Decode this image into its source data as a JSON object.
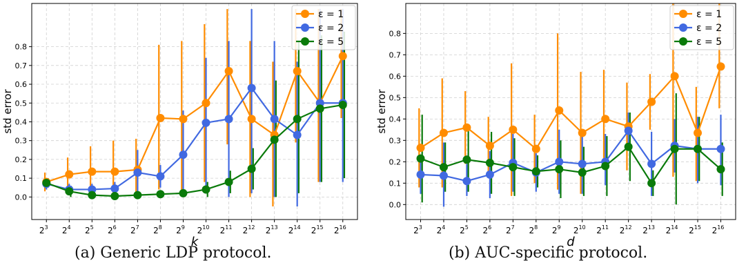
{
  "captions": [
    "(a) Generic LDP protocol.",
    "(b) AUC-specific protocol."
  ],
  "chart_data": [
    {
      "type": "line",
      "xlabel": "k",
      "ylabel": "std error",
      "x": [
        "2^3",
        "2^4",
        "2^5",
        "2^6",
        "2^7",
        "2^8",
        "2^9",
        "2^10",
        "2^11",
        "2^12",
        "2^13",
        "2^14",
        "2^15",
        "2^16"
      ],
      "ylim": [
        -0.12,
        1.03
      ],
      "yticks": [
        "0.0",
        "0.1",
        "0.2",
        "0.3",
        "0.4",
        "0.5",
        "0.6",
        "0.7",
        "0.8"
      ],
      "grid": true,
      "legend_position": "top-right",
      "series": [
        {
          "name": "ε = 1",
          "color": "#ff8c00",
          "values": [
            0.08,
            0.12,
            0.135,
            0.135,
            0.145,
            0.42,
            0.415,
            0.5,
            0.67,
            0.415,
            0.33,
            0.67,
            0.5,
            0.75
          ],
          "err_low": [
            0.03,
            0.02,
            0.02,
            0.02,
            0.02,
            0.04,
            0.02,
            0.08,
            0.28,
            0.0,
            -0.05,
            0.29,
            0.08,
            0.42
          ],
          "err_high": [
            0.13,
            0.21,
            0.27,
            0.3,
            0.31,
            0.81,
            0.83,
            0.92,
            1.0,
            0.83,
            0.72,
            1.0,
            1.0,
            1.0
          ]
        },
        {
          "name": "ε = 2",
          "color": "#4169e1",
          "values": [
            0.07,
            0.04,
            0.04,
            0.045,
            0.13,
            0.11,
            0.225,
            0.395,
            0.415,
            0.58,
            0.415,
            0.33,
            0.5,
            0.5
          ],
          "err_low": [
            0.04,
            0.01,
            0.01,
            0.01,
            0.0,
            0.05,
            0.0,
            0.05,
            0.0,
            0.02,
            0.0,
            -0.05,
            0.08,
            0.08
          ],
          "err_high": [
            0.1,
            0.07,
            0.07,
            0.08,
            0.25,
            0.17,
            0.46,
            0.74,
            0.83,
            1.0,
            0.83,
            0.72,
            1.0,
            1.0
          ]
        },
        {
          "name": "ε = 5",
          "color": "#0a7a0a",
          "values": [
            0.075,
            0.03,
            0.01,
            0.005,
            0.01,
            0.015,
            0.02,
            0.04,
            0.08,
            0.15,
            0.305,
            0.415,
            0.47,
            0.49
          ],
          "err_low": [
            0.05,
            0.0,
            0.0,
            0.0,
            0.0,
            0.0,
            0.0,
            0.0,
            0.02,
            0.04,
            0.0,
            0.02,
            0.08,
            0.1
          ],
          "err_high": [
            0.1,
            0.06,
            0.03,
            0.01,
            0.02,
            0.03,
            0.04,
            0.08,
            0.14,
            0.26,
            0.62,
            0.83,
            0.86,
            0.88
          ]
        }
      ]
    },
    {
      "type": "line",
      "xlabel": "d",
      "ylabel": "std error",
      "x": [
        "2^3",
        "2^4",
        "2^5",
        "2^6",
        "2^7",
        "2^8",
        "2^9",
        "2^10",
        "2^11",
        "2^12",
        "2^13",
        "2^14",
        "2^15",
        "2^16"
      ],
      "ylim": [
        -0.07,
        0.94
      ],
      "yticks": [
        "0.0",
        "0.1",
        "0.2",
        "0.3",
        "0.4",
        "0.5",
        "0.6",
        "0.7",
        "0.8"
      ],
      "grid": true,
      "legend_position": "top-right",
      "series": [
        {
          "name": "ε = 1",
          "color": "#ff8c00",
          "values": [
            0.265,
            0.335,
            0.36,
            0.275,
            0.35,
            0.26,
            0.44,
            0.335,
            0.4,
            0.365,
            0.48,
            0.6,
            0.335,
            0.645
          ],
          "err_low": [
            0.08,
            0.08,
            0.19,
            0.14,
            0.04,
            0.1,
            0.07,
            0.05,
            0.17,
            0.16,
            0.35,
            0.13,
            0.11,
            0.45
          ],
          "err_high": [
            0.45,
            0.59,
            0.53,
            0.41,
            0.66,
            0.42,
            0.8,
            0.62,
            0.63,
            0.57,
            0.61,
            0.94,
            0.55,
            0.94
          ]
        },
        {
          "name": "ε = 2",
          "color": "#4169e1",
          "values": [
            0.14,
            0.135,
            0.11,
            0.14,
            0.195,
            0.15,
            0.2,
            0.19,
            0.2,
            0.345,
            0.19,
            0.275,
            0.26,
            0.26
          ],
          "err_low": [
            0.05,
            -0.01,
            0.04,
            0.03,
            0.06,
            0.06,
            0.05,
            0.05,
            0.09,
            0.26,
            0.04,
            0.15,
            0.1,
            0.09
          ],
          "err_high": [
            0.23,
            0.29,
            0.19,
            0.25,
            0.33,
            0.24,
            0.35,
            0.33,
            0.33,
            0.43,
            0.34,
            0.4,
            0.41,
            0.42
          ]
        },
        {
          "name": "ε = 5",
          "color": "#0a7a0a",
          "values": [
            0.215,
            0.175,
            0.21,
            0.195,
            0.175,
            0.155,
            0.165,
            0.15,
            0.18,
            0.27,
            0.1,
            0.26,
            0.26,
            0.165
          ],
          "err_low": [
            0.01,
            0.06,
            0.06,
            0.05,
            0.04,
            0.08,
            0.03,
            0.04,
            0.04,
            0.11,
            0.04,
            0.0,
            0.11,
            0.04
          ],
          "err_high": [
            0.42,
            0.29,
            0.36,
            0.34,
            0.31,
            0.23,
            0.3,
            0.27,
            0.32,
            0.43,
            0.16,
            0.52,
            0.41,
            0.29
          ]
        }
      ]
    }
  ]
}
